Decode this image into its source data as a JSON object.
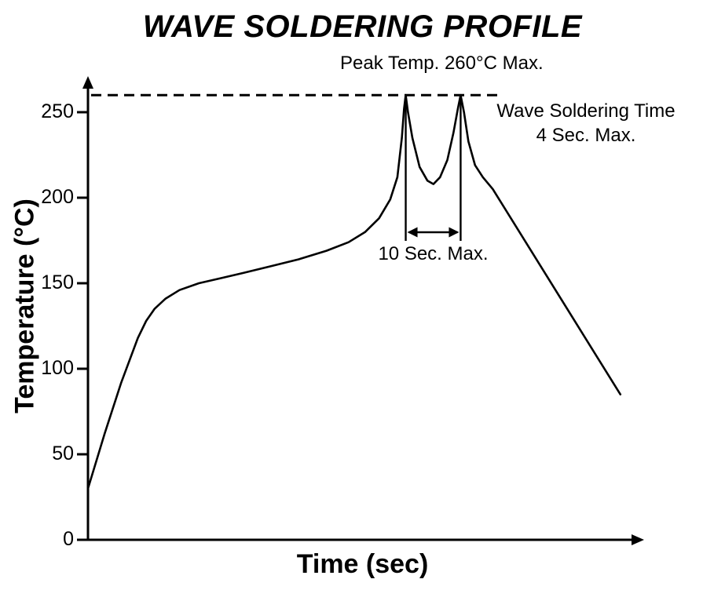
{
  "page": {
    "background": "#ffffff",
    "ink": "#000000"
  },
  "chart_data": {
    "type": "line",
    "title": "WAVE SOLDERING PROFILE",
    "xlabel": "Time (sec)",
    "ylabel": "Temperature (°C)",
    "xlim": [
      0,
      100
    ],
    "ylim": [
      0,
      275
    ],
    "yticks": [
      0,
      50,
      100,
      150,
      200,
      250
    ],
    "x_tick_labels_shown": false,
    "grid": false,
    "legend": false,
    "max_line": {
      "value": 260,
      "style": "dashed"
    },
    "annotations": {
      "peak_temp": "Peak Temp. 260°C Max.",
      "wave_time_line1": "Wave Soldering Time",
      "wave_time_line2": "4 Sec. Max.",
      "peak_spacing": "10 Sec. Max."
    },
    "peak_times": [
      57.3,
      67.2
    ],
    "peak_temperature": 260,
    "series": [
      {
        "name": "wave-soldering-profile",
        "x": [
          0,
          3,
          6,
          9,
          10.5,
          12,
          14,
          16.5,
          20,
          24,
          28,
          33,
          38,
          43,
          47,
          50,
          52.5,
          54.5,
          55.8,
          56.6,
          57,
          57.3,
          57.7,
          58.5,
          59.8,
          61.2,
          62.3,
          63.5,
          64.8,
          65.9,
          66.7,
          67.2,
          67.8,
          68.6,
          69.8,
          71.2,
          73,
          96
        ],
        "y": [
          30,
          62,
          92,
          118,
          128,
          135,
          141,
          146,
          150,
          153,
          156,
          160,
          164,
          169,
          174,
          180,
          188,
          199,
          212,
          235,
          252,
          260,
          250,
          235,
          218,
          210,
          208,
          212,
          222,
          238,
          252,
          260,
          250,
          233,
          219,
          212,
          205,
          85
        ]
      }
    ]
  }
}
